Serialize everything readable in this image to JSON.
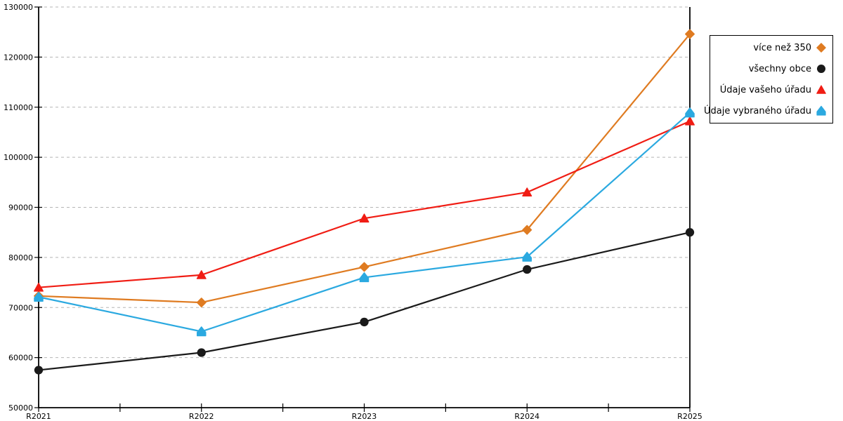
{
  "chart_data": {
    "type": "line",
    "title": "",
    "categories": [
      "R2021",
      "R2022",
      "R2023",
      "R2024",
      "R2025"
    ],
    "y_axis": {
      "min": 50000,
      "max": 130000,
      "step": 10000,
      "tick_labels": [
        "50000",
        "60000",
        "70000",
        "80000",
        "90000",
        "100000",
        "110000",
        "120000",
        "130000"
      ]
    },
    "series": [
      {
        "name": "více než 350",
        "marker": "diamond",
        "color": "#df7b21",
        "values": [
          72300,
          71000,
          78100,
          85500,
          124600
        ]
      },
      {
        "name": "všechny obce",
        "marker": "circle",
        "color": "#1a1a1a",
        "values": [
          57500,
          61000,
          67100,
          77600,
          85000
        ]
      },
      {
        "name": "Údaje vašeho úřadu",
        "marker": "triangle",
        "color": "#f01d14",
        "values": [
          74000,
          76500,
          87800,
          93000,
          107200
        ]
      },
      {
        "name": "Údaje vybraného úřadu",
        "marker": "pentagon",
        "color": "#2ba9e0",
        "values": [
          72100,
          65200,
          76000,
          80100,
          108900
        ]
      }
    ],
    "grid": {
      "visible": true,
      "style": "dashed",
      "color": "#b5b5b5"
    },
    "axis_color": "#000000",
    "legend": {
      "position": "top-right",
      "background": "#ffffff",
      "border_color": "#000000"
    }
  }
}
